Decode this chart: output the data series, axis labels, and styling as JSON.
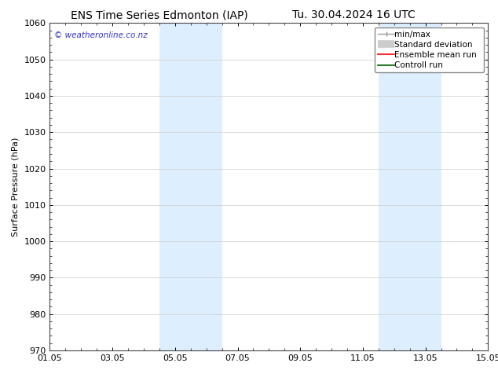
{
  "title_left": "ENS Time Series Edmonton (IAP)",
  "title_right": "Tu. 30.04.2024 16 UTC",
  "ylabel": "Surface Pressure (hPa)",
  "ylim": [
    970,
    1060
  ],
  "yticks": [
    970,
    980,
    990,
    1000,
    1010,
    1020,
    1030,
    1040,
    1050,
    1060
  ],
  "xtick_labels": [
    "01.05",
    "03.05",
    "05.05",
    "07.05",
    "09.05",
    "11.05",
    "13.05",
    "15.05"
  ],
  "xtick_positions": [
    0,
    2,
    4,
    6,
    8,
    10,
    12,
    14
  ],
  "xlim": [
    0,
    14
  ],
  "shaded_bands": [
    {
      "x_start": 3.5,
      "x_end": 5.5
    },
    {
      "x_start": 10.5,
      "x_end": 12.5
    }
  ],
  "shade_color": "#ddeeff",
  "watermark_text": "© weatheronline.co.nz",
  "watermark_color": "#3333cc",
  "grid_color": "#cccccc",
  "bg_color": "#ffffff",
  "title_fontsize": 10,
  "axis_fontsize": 8,
  "tick_fontsize": 8,
  "legend_fontsize": 7.5
}
